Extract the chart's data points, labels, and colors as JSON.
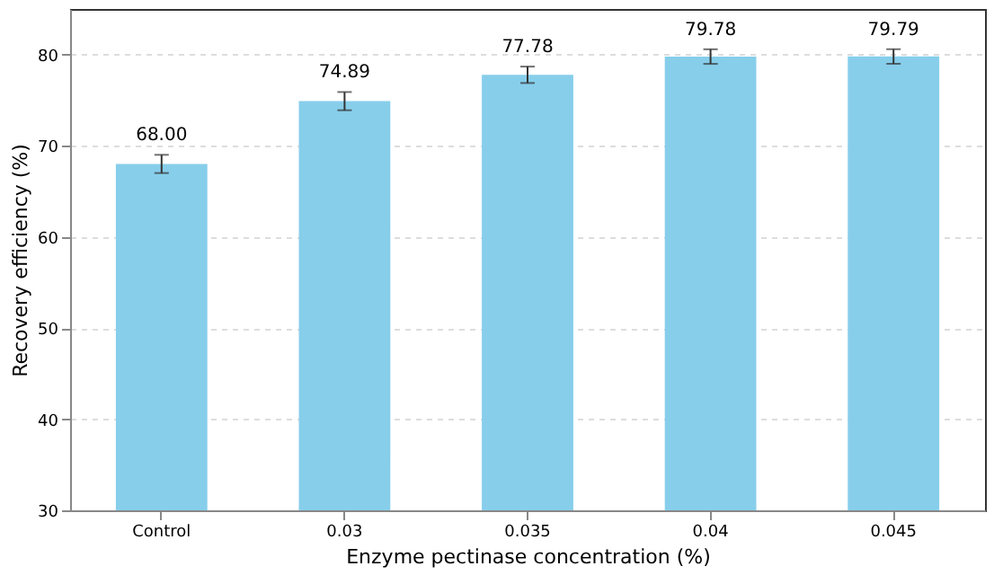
{
  "chart_data": {
    "type": "bar",
    "xlabel": "Enzyme pectinase concentration (%)",
    "ylabel": "Recovery efficiency (%)",
    "categories": [
      "Control",
      "0.03",
      "0.035",
      "0.04",
      "0.045"
    ],
    "values": [
      68.0,
      74.89,
      77.78,
      79.78,
      79.79
    ],
    "errors": [
      1.0,
      1.0,
      0.9,
      0.8,
      0.8
    ],
    "value_labels": [
      "68.00",
      "74.89",
      "77.78",
      "79.78",
      "79.79"
    ],
    "color": "#87ceeb",
    "grid": "y",
    "ylim": [
      30,
      85
    ],
    "yticks": [
      30,
      40,
      50,
      60,
      70,
      80
    ]
  }
}
